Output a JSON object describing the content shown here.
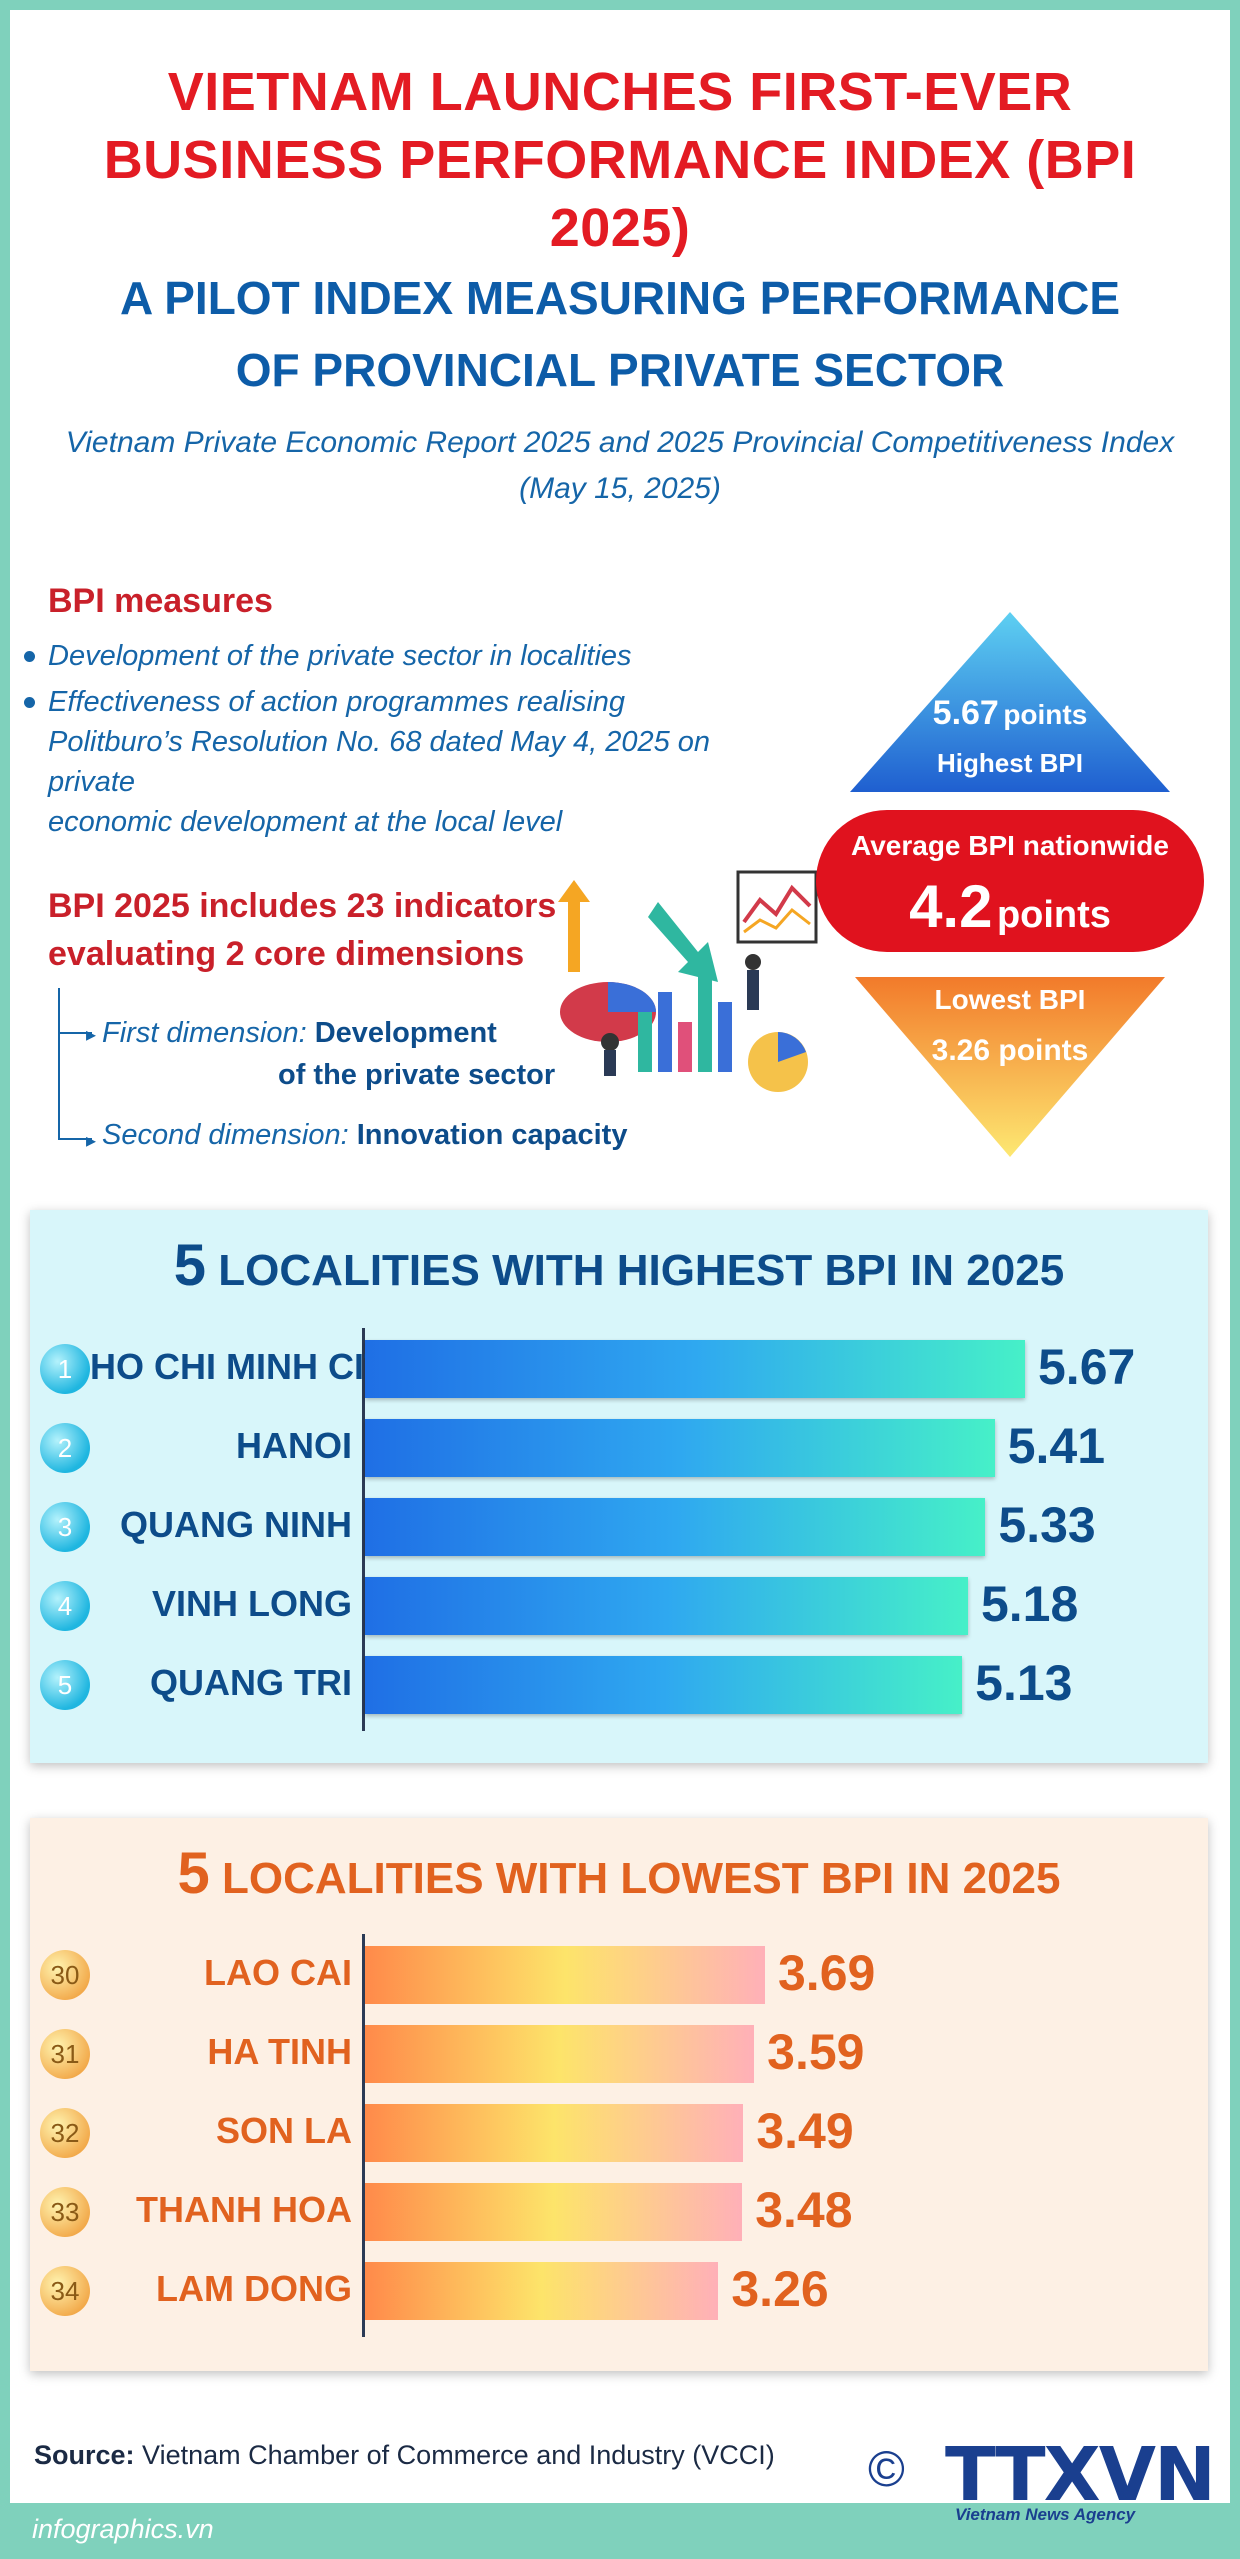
{
  "header": {
    "title": "VIETNAM LAUNCHES FIRST-EVER\nBUSINESS PERFORMANCE INDEX (BPI 2025)",
    "subtitle": "A PILOT INDEX MEASURING PERFORMANCE\nOF PROVINCIAL PRIVATE SECTOR",
    "report": "Vietnam Private Economic Report 2025 and 2025 Provincial Competitiveness Index\n(May 15, 2025)"
  },
  "measures": {
    "heading": "BPI measures",
    "items": [
      "Development of the private sector in localities",
      "Effectiveness of action programmes realising\nPolitburo’s Resolution No. 68 dated May 4, 2025 on private\neconomic development at the local level"
    ]
  },
  "dimensions": {
    "heading": "BPI 2025 includes 23 indicators\nevaluating 2 core dimensions",
    "first_label": "First dimension:",
    "first_value_1": "Development",
    "first_value_2": "of the private sector",
    "second_label": "Second dimension:",
    "second_value": "Innovation capacity"
  },
  "stats": {
    "highest_value": "5.67",
    "highest_unit": "points",
    "highest_label": "Highest BPI",
    "average_label": "Average BPI nationwide",
    "average_value": "4.2",
    "average_unit": "points",
    "lowest_label": "Lowest BPI",
    "lowest_value": "3.26 points"
  },
  "colors": {
    "title_red": "#e31b23",
    "navy": "#0d4c8a",
    "orange": "#e1621f",
    "frame_teal": "#7fd1bc"
  },
  "chart_data": [
    {
      "type": "bar",
      "orientation": "horizontal",
      "title_number": "5",
      "title_rest": "LOCALITIES WITH HIGHEST BPI IN 2025",
      "ranks": [
        "1",
        "2",
        "3",
        "4",
        "5"
      ],
      "categories": [
        "HO CHI MINH CITY",
        "HANOI",
        "QUANG NINH",
        "VINH LONG",
        "QUANG TRI"
      ],
      "values": [
        5.67,
        5.41,
        5.33,
        5.18,
        5.13
      ],
      "value_labels": [
        "5.67",
        "5.41",
        "5.33",
        "5.18",
        "5.13"
      ]
    },
    {
      "type": "bar",
      "orientation": "horizontal",
      "title_number": "5",
      "title_rest": "LOCALITIES WITH LOWEST BPI IN 2025",
      "ranks": [
        "30",
        "31",
        "32",
        "33",
        "34"
      ],
      "categories": [
        "LAO CAI",
        "HA TINH",
        "SON LA",
        "THANH HOA",
        "LAM DONG"
      ],
      "values": [
        3.69,
        3.59,
        3.49,
        3.48,
        3.26
      ],
      "value_labels": [
        "3.69",
        "3.59",
        "3.49",
        "3.48",
        "3.26"
      ]
    }
  ],
  "footer": {
    "source_label": "Source:",
    "source_text": "Vietnam Chamber of Commerce and Industry (VCCI)",
    "copyright": "©",
    "agency_logo_text": "TTXVN",
    "agency_name": "Vietnam News Agency",
    "site": "infographics.vn"
  }
}
